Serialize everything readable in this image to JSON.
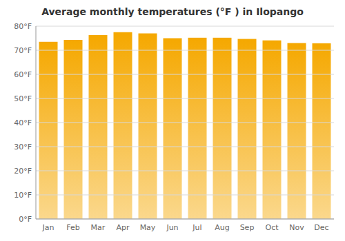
{
  "chart_data": {
    "type": "bar",
    "title": "Average monthly temperatures (°F ) in Ilopango",
    "categories": [
      "Jan",
      "Feb",
      "Mar",
      "Apr",
      "May",
      "Jun",
      "Jul",
      "Aug",
      "Sep",
      "Oct",
      "Nov",
      "Dec"
    ],
    "values": [
      73.5,
      74.3,
      76.3,
      77.5,
      77.0,
      75.0,
      75.2,
      75.2,
      74.7,
      74.1,
      73.0,
      72.9
    ],
    "color": "#F5A800",
    "ylim": [
      0,
      80
    ],
    "yticks": [
      {
        "value": 0,
        "label": "0°F"
      },
      {
        "value": 10,
        "label": "10°F"
      },
      {
        "value": 20,
        "label": "20°F"
      },
      {
        "value": 30,
        "label": "30°F"
      },
      {
        "value": 40,
        "label": "40°F"
      },
      {
        "value": 50,
        "label": "50°F"
      },
      {
        "value": 60,
        "label": "60°F"
      },
      {
        "value": 70,
        "label": "70°F"
      },
      {
        "value": 80,
        "label": "80°F"
      }
    ],
    "grid": true
  }
}
